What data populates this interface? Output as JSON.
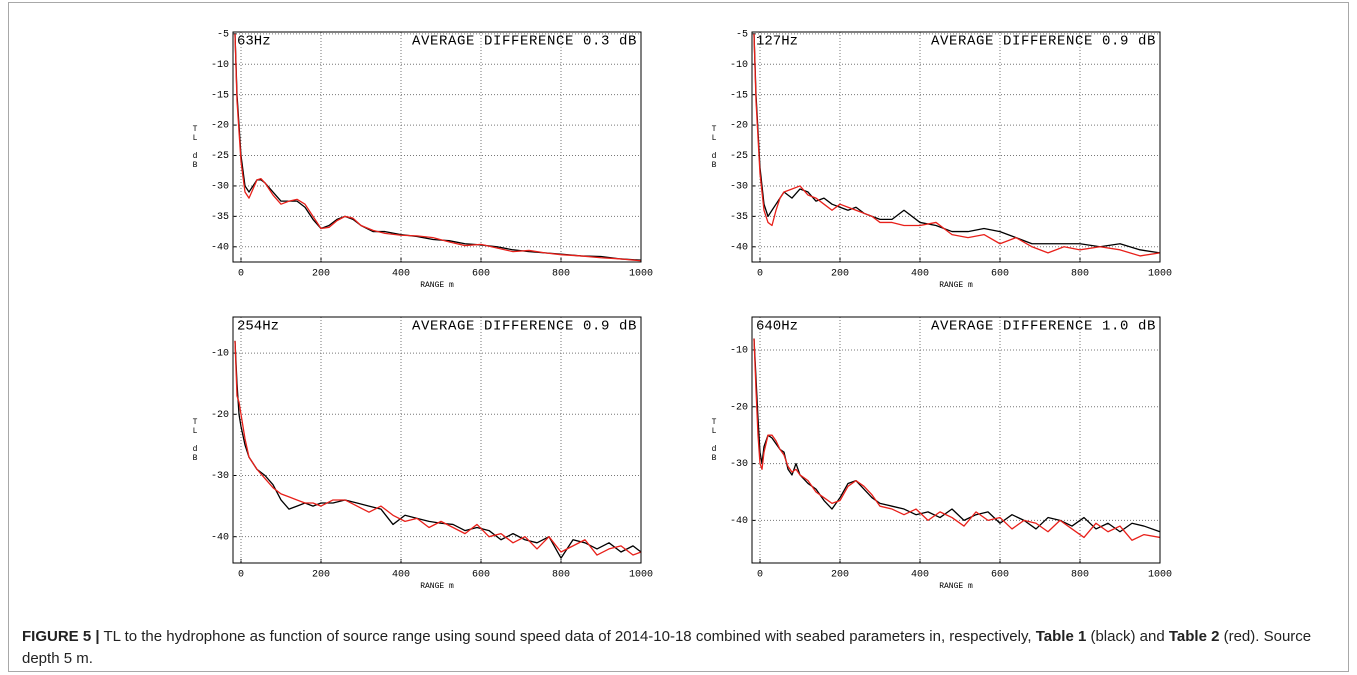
{
  "chart_data": [
    {
      "type": "line",
      "frequency_label": "63Hz",
      "annotation": "AVERAGE DIFFERENCE 0.3 dB",
      "x_label": "RANGE m",
      "y_label": "TL dB",
      "xlim": [
        -20,
        1000
      ],
      "xticks": [
        0,
        200,
        400,
        600,
        800,
        1000
      ],
      "ylim": [
        -42.5,
        -4.7
      ],
      "yticks": [
        -5,
        -10,
        -15,
        -20,
        -25,
        -30,
        -35,
        -40
      ],
      "grid": true,
      "x": [
        -15,
        -10,
        0,
        10,
        20,
        30,
        40,
        50,
        60,
        80,
        100,
        120,
        140,
        160,
        180,
        200,
        220,
        240,
        260,
        280,
        300,
        330,
        360,
        400,
        440,
        480,
        520,
        560,
        600,
        640,
        680,
        720,
        760,
        800,
        850,
        900,
        950,
        1000
      ],
      "series": [
        {
          "color": "#000000",
          "values": [
            -5,
            -15,
            -25,
            -30,
            -31,
            -30,
            -29,
            -29,
            -29.5,
            -31,
            -32.5,
            -32.5,
            -32.5,
            -33.5,
            -35.5,
            -37,
            -36.5,
            -35.5,
            -35,
            -35.5,
            -36.5,
            -37.5,
            -37.5,
            -38,
            -38.3,
            -38.8,
            -39,
            -39.5,
            -39.7,
            -40,
            -40.5,
            -40.8,
            -41,
            -41.2,
            -41.5,
            -41.6,
            -42,
            -42.2
          ]
        },
        {
          "color": "#e8201a",
          "values": [
            -5,
            -16,
            -26,
            -31,
            -32,
            -30.5,
            -29,
            -28.8,
            -29.5,
            -31.5,
            -33,
            -32.5,
            -32.2,
            -33,
            -35,
            -37,
            -36.8,
            -35.7,
            -35,
            -35.3,
            -36.5,
            -37.3,
            -37.8,
            -38.1,
            -38.2,
            -38.5,
            -39.2,
            -39.8,
            -39.6,
            -40.2,
            -40.8,
            -40.6,
            -41,
            -41.3,
            -41.5,
            -41.8,
            -42,
            -42.3
          ]
        }
      ]
    },
    {
      "type": "line",
      "frequency_label": "127Hz",
      "annotation": "AVERAGE DIFFERENCE 0.9 dB",
      "x_label": "RANGE m",
      "y_label": "TL dB",
      "xlim": [
        -20,
        1000
      ],
      "xticks": [
        0,
        200,
        400,
        600,
        800,
        1000
      ],
      "ylim": [
        -42.5,
        -4.7
      ],
      "yticks": [
        -5,
        -10,
        -15,
        -20,
        -25,
        -30,
        -35,
        -40
      ],
      "grid": true,
      "x": [
        -15,
        -10,
        0,
        10,
        20,
        30,
        40,
        50,
        60,
        80,
        100,
        120,
        140,
        160,
        180,
        200,
        220,
        240,
        260,
        280,
        300,
        330,
        360,
        400,
        440,
        480,
        520,
        560,
        600,
        640,
        680,
        720,
        760,
        800,
        850,
        900,
        950,
        1000
      ],
      "series": [
        {
          "color": "#000000",
          "values": [
            -5,
            -15,
            -27,
            -33,
            -35,
            -34,
            -33,
            -32,
            -31,
            -32,
            -30.5,
            -31,
            -32.5,
            -32,
            -33,
            -33.5,
            -34,
            -33.5,
            -34.5,
            -35,
            -35.5,
            -35.5,
            -34,
            -36,
            -36.5,
            -37.5,
            -37.5,
            -37,
            -37.5,
            -38.5,
            -39.5,
            -39.5,
            -39.5,
            -39.5,
            -40,
            -39.5,
            -40.5,
            -41
          ]
        },
        {
          "color": "#e8201a",
          "values": [
            -5,
            -16,
            -28,
            -34,
            -36,
            -36.5,
            -34,
            -32,
            -31,
            -30.5,
            -30,
            -31.5,
            -32,
            -33,
            -34,
            -33,
            -33.5,
            -34,
            -34.5,
            -35,
            -36,
            -36,
            -36.5,
            -36.5,
            -36,
            -38,
            -38.5,
            -38,
            -39.5,
            -38.5,
            -40,
            -41,
            -40,
            -40.5,
            -40,
            -40.5,
            -41.5,
            -41
          ]
        }
      ]
    },
    {
      "type": "line",
      "frequency_label": "254Hz",
      "annotation": "AVERAGE DIFFERENCE 0.9 dB",
      "x_label": "RANGE m",
      "y_label": "TL dB",
      "xlim": [
        -20,
        1000
      ],
      "xticks": [
        0,
        200,
        400,
        600,
        800,
        1000
      ],
      "ylim": [
        -44.3,
        -4.1
      ],
      "yticks": [
        -10,
        -20,
        -30,
        -40
      ],
      "grid": true,
      "x": [
        -15,
        -10,
        -5,
        0,
        10,
        20,
        30,
        40,
        60,
        80,
        100,
        120,
        140,
        160,
        180,
        200,
        230,
        260,
        290,
        320,
        350,
        380,
        410,
        440,
        470,
        500,
        530,
        560,
        590,
        620,
        650,
        680,
        710,
        740,
        770,
        800,
        830,
        860,
        890,
        920,
        950,
        980,
        1000
      ],
      "series": [
        {
          "color": "#000000",
          "values": [
            -8,
            -15,
            -20,
            -22,
            -25,
            -27,
            -28,
            -29,
            -30,
            -31.5,
            -34,
            -35.5,
            -35,
            -34.5,
            -35,
            -34.5,
            -34.5,
            -34,
            -34.5,
            -35,
            -35.5,
            -38,
            -36.5,
            -37,
            -37.5,
            -37.8,
            -38,
            -39,
            -38.5,
            -39,
            -40.5,
            -39.5,
            -40.5,
            -41,
            -40,
            -43.5,
            -40.5,
            -41,
            -42,
            -41,
            -42.5,
            -41.5,
            -42.5
          ]
        },
        {
          "color": "#e8201a",
          "values": [
            -8,
            -17,
            -18,
            -20,
            -24,
            -27,
            -28,
            -29,
            -30.5,
            -32,
            -33,
            -33.5,
            -34,
            -34.5,
            -34.5,
            -35,
            -34,
            -34,
            -35,
            -36,
            -35,
            -36.5,
            -37.5,
            -37,
            -38.5,
            -37.5,
            -38.5,
            -39.5,
            -38,
            -40,
            -39.5,
            -41,
            -40,
            -42,
            -40,
            -42.5,
            -41.5,
            -40.5,
            -43,
            -42,
            -41.5,
            -43,
            -42.5
          ]
        }
      ]
    },
    {
      "type": "line",
      "frequency_label": "640Hz",
      "annotation": "AVERAGE DIFFERENCE 1.0 dB",
      "x_label": "RANGE m",
      "y_label": "TL dB",
      "xlim": [
        -20,
        1000
      ],
      "xticks": [
        0,
        200,
        400,
        600,
        800,
        1000
      ],
      "ylim": [
        -47.5,
        -4.2
      ],
      "yticks": [
        -10,
        -20,
        -30,
        -40
      ],
      "grid": true,
      "x": [
        -15,
        -10,
        -5,
        0,
        5,
        10,
        20,
        30,
        40,
        50,
        60,
        70,
        80,
        90,
        100,
        120,
        140,
        160,
        180,
        200,
        220,
        240,
        260,
        280,
        300,
        330,
        360,
        390,
        420,
        450,
        480,
        510,
        540,
        570,
        600,
        630,
        660,
        690,
        720,
        750,
        780,
        810,
        840,
        870,
        900,
        930,
        960,
        1000
      ],
      "series": [
        {
          "color": "#000000",
          "values": [
            -8,
            -15,
            -22,
            -28,
            -30,
            -27,
            -25,
            -25.5,
            -26.5,
            -27.5,
            -28,
            -31,
            -32,
            -30,
            -32,
            -33.5,
            -34.5,
            -36.5,
            -38,
            -36,
            -33.5,
            -33,
            -34.5,
            -36,
            -37,
            -37.5,
            -38,
            -39,
            -38.5,
            -39.5,
            -38,
            -40,
            -39,
            -38.5,
            -40.5,
            -39,
            -40,
            -41.5,
            -39.5,
            -40,
            -41,
            -39.5,
            -41.5,
            -40.5,
            -42,
            -40.5,
            -41,
            -42
          ]
        },
        {
          "color": "#e8201a",
          "values": [
            -8,
            -17,
            -25,
            -30,
            -31,
            -28,
            -25,
            -25,
            -26,
            -27.5,
            -28.5,
            -30.5,
            -31.5,
            -31,
            -32,
            -33,
            -35,
            -36,
            -37,
            -36.5,
            -34,
            -33,
            -34,
            -35.5,
            -37.5,
            -38,
            -39,
            -38,
            -40,
            -38.5,
            -39.5,
            -41,
            -38.5,
            -40,
            -39.5,
            -41.5,
            -40,
            -40.5,
            -42,
            -40,
            -41.5,
            -43,
            -40.5,
            -42,
            -41,
            -43.5,
            -42.5,
            -43
          ]
        }
      ]
    }
  ],
  "caption": {
    "label": "FIGURE 5 |",
    "text_1": "TL to the hydrophone as function of source range using sound speed data of 2014-10-18 combined with seabed parameters in, respectively,",
    "ref_1": "Table 1",
    "text_2": "(black) and",
    "ref_2": "Table 2",
    "text_3": "(red). Source depth 5 m."
  }
}
